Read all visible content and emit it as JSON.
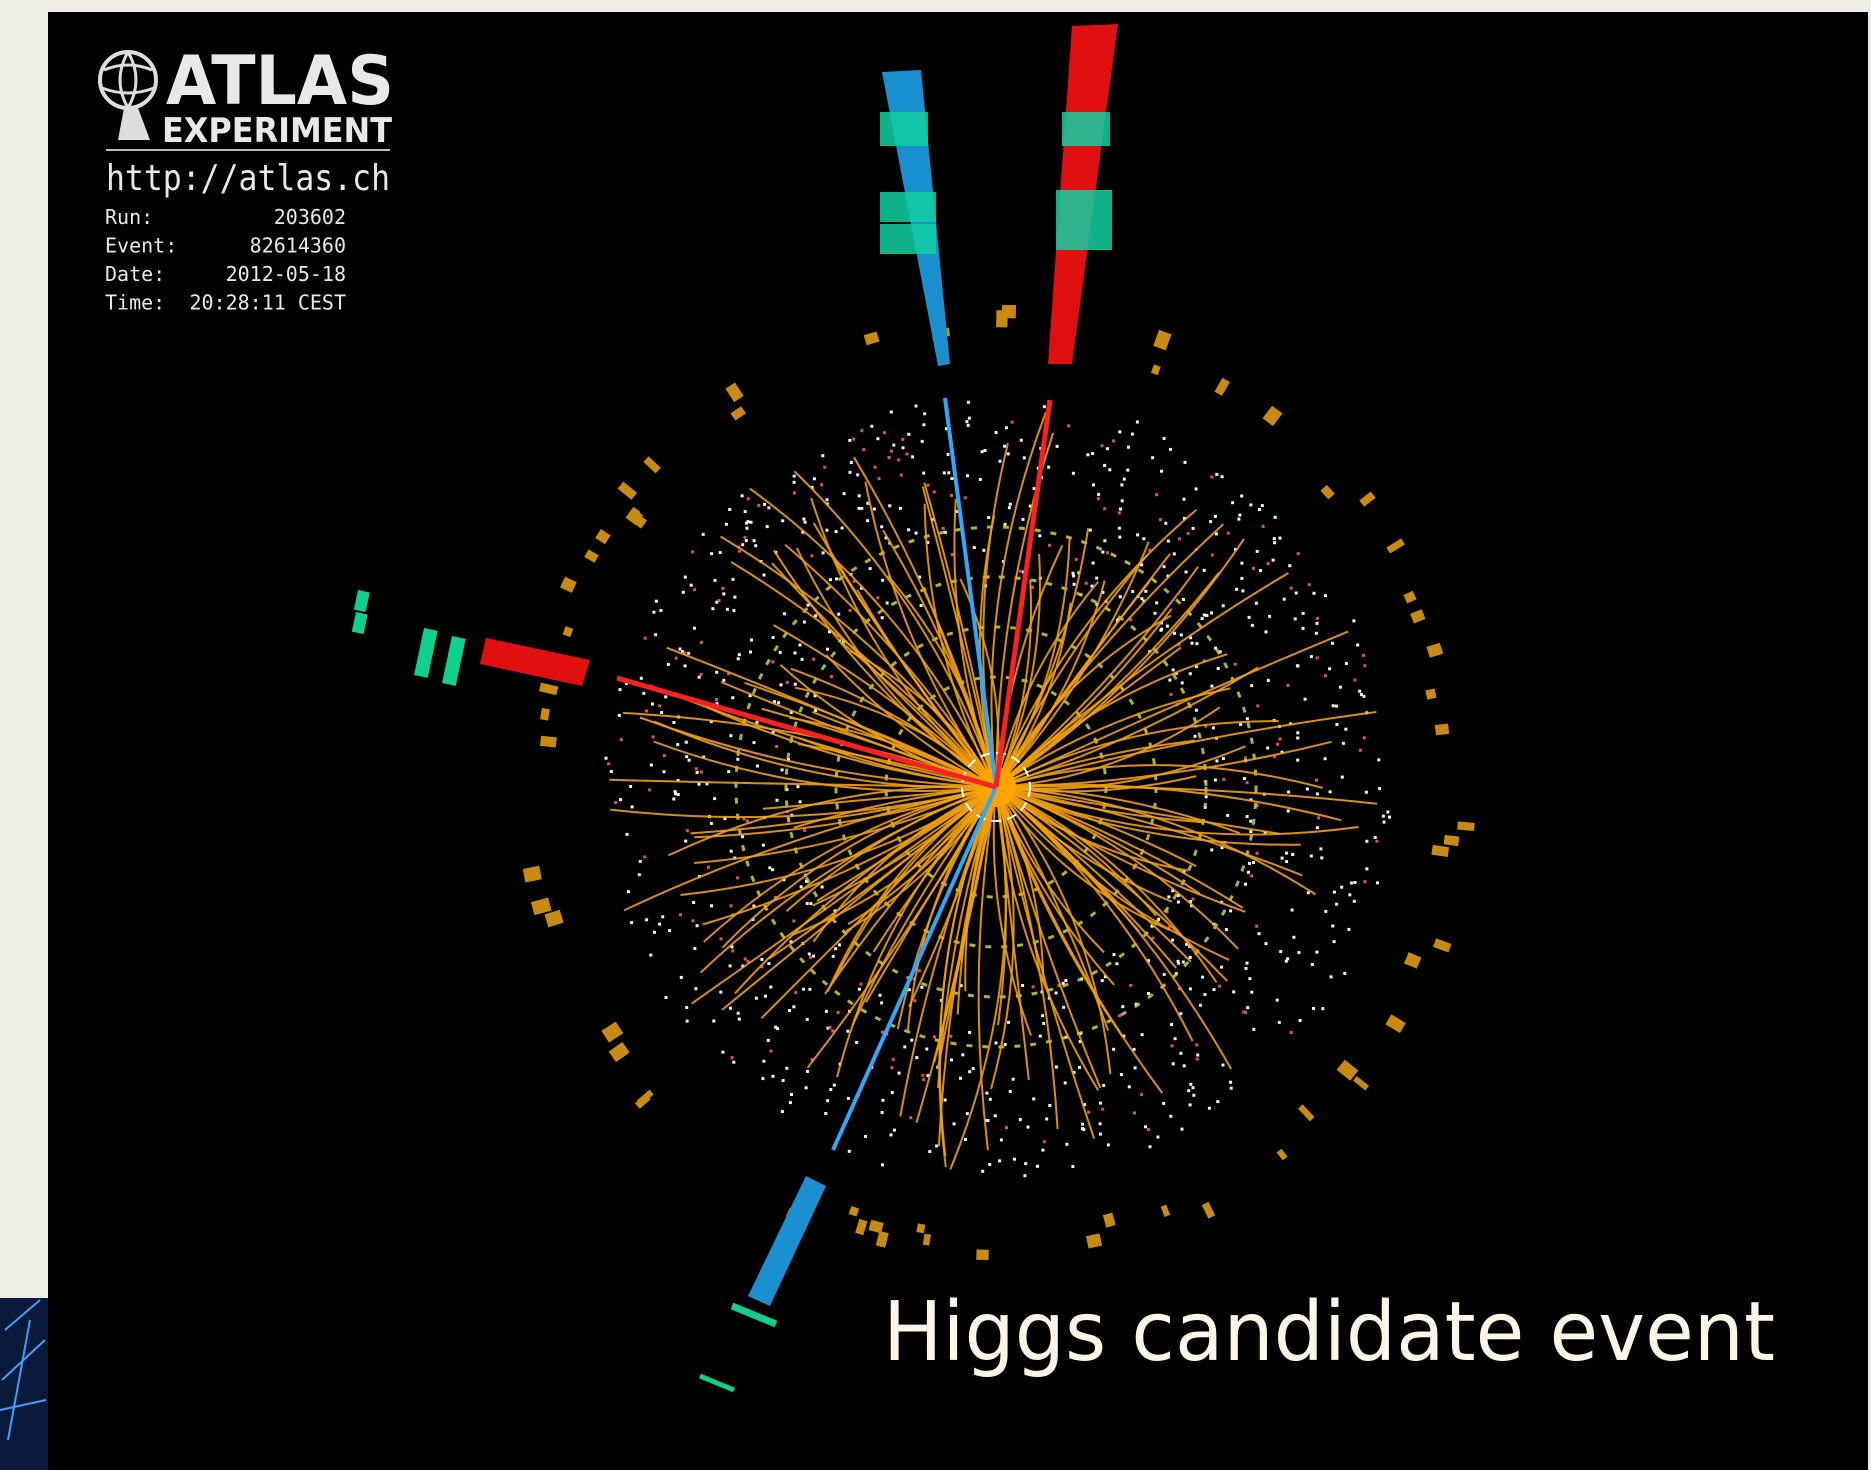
{
  "logo": {
    "title": "ATLAS",
    "subtitle": "EXPERIMENT",
    "url": "http://atlas.ch"
  },
  "event_info": [
    {
      "label": "Run:",
      "value": "203602"
    },
    {
      "label": "Event:",
      "value": "82614360"
    },
    {
      "label": "Date:",
      "value": "2012-05-18"
    },
    {
      "label": "Time:",
      "value": "20:28:11 CEST"
    }
  ],
  "caption": "Higgs candidate event"
}
